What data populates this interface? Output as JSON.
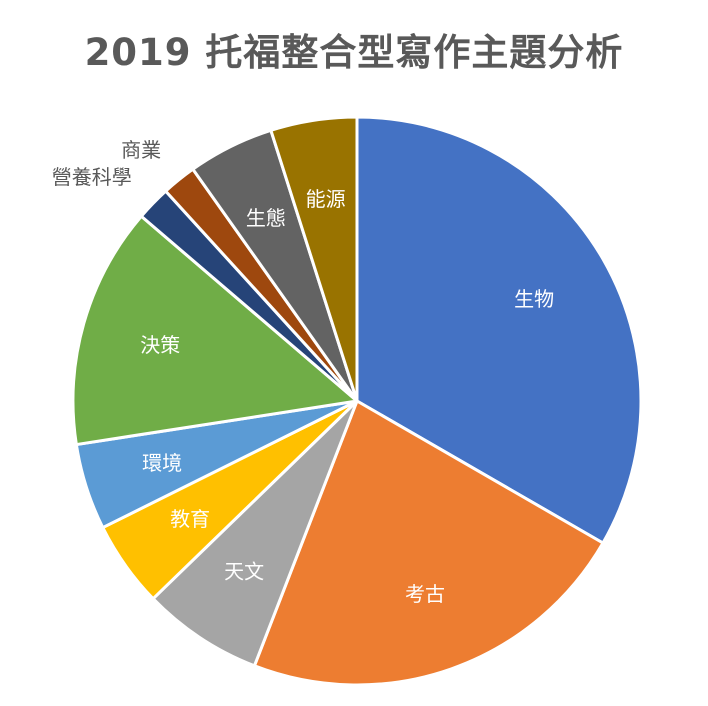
{
  "chart_data": {
    "type": "pie",
    "title": "2019 托福整合型寫作主題分析",
    "start_angle_deg": 0,
    "direction": "clockwise",
    "slices": [
      {
        "label": "生物",
        "value": 34,
        "color": "#4472C4",
        "label_color": "#ffffff",
        "label_position": "inside"
      },
      {
        "label": "考古",
        "value": 23,
        "color": "#ED7D31",
        "label_color": "#ffffff",
        "label_position": "inside"
      },
      {
        "label": "天文",
        "value": 7,
        "color": "#A5A5A5",
        "label_color": "#ffffff",
        "label_position": "inside"
      },
      {
        "label": "教育",
        "value": 5,
        "color": "#FFC000",
        "label_color": "#ffffff",
        "label_position": "inside"
      },
      {
        "label": "環境",
        "value": 5,
        "color": "#5B9BD5",
        "label_color": "#ffffff",
        "label_position": "inside"
      },
      {
        "label": "決策",
        "value": 14,
        "color": "#70AD47",
        "label_color": "#ffffff",
        "label_position": "inside"
      },
      {
        "label": "營養科學",
        "value": 2,
        "color": "#264478",
        "label_color": "#595959",
        "label_position": "outside"
      },
      {
        "label": "商業",
        "value": 2,
        "color": "#9E480E",
        "label_color": "#595959",
        "label_position": "outside"
      },
      {
        "label": "生態",
        "value": 5,
        "color": "#636363",
        "label_color": "#ffffff",
        "label_position": "inside"
      },
      {
        "label": "能源",
        "value": 5,
        "color": "#997300",
        "label_color": "#ffffff",
        "label_position": "inside"
      }
    ]
  }
}
